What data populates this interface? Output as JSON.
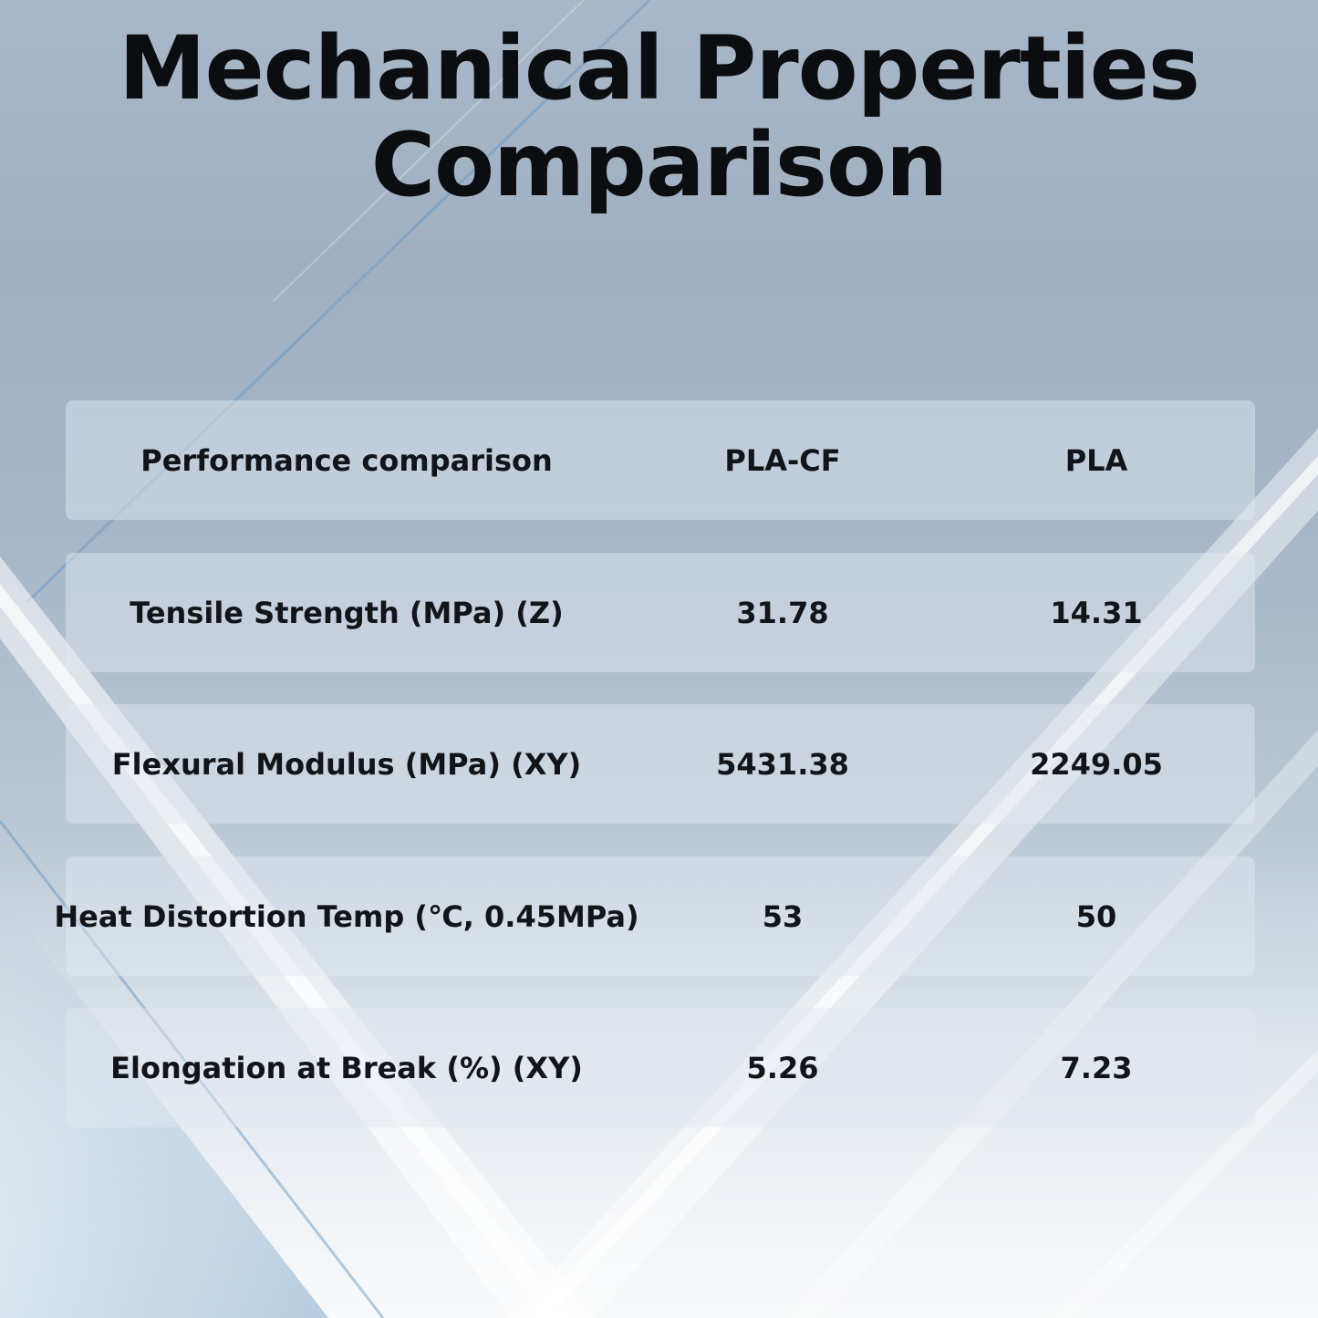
{
  "title": {
    "line1": "Mechanical Properties",
    "line2": "Comparison"
  },
  "table": {
    "headers": [
      "Performance comparison",
      "PLA-CF",
      "PLA"
    ],
    "rows": [
      [
        "Tensile Strength (MPa) (Z)",
        "31.78",
        "14.31"
      ],
      [
        "Flexural Modulus (MPa) (XY)",
        "5431.38",
        "2249.05"
      ],
      [
        "Heat Distortion Temp (℃, 0.45MPa)",
        "53",
        "50"
      ],
      [
        "Elongation at Break (%) (XY)",
        "5.26",
        "7.23"
      ]
    ]
  }
}
